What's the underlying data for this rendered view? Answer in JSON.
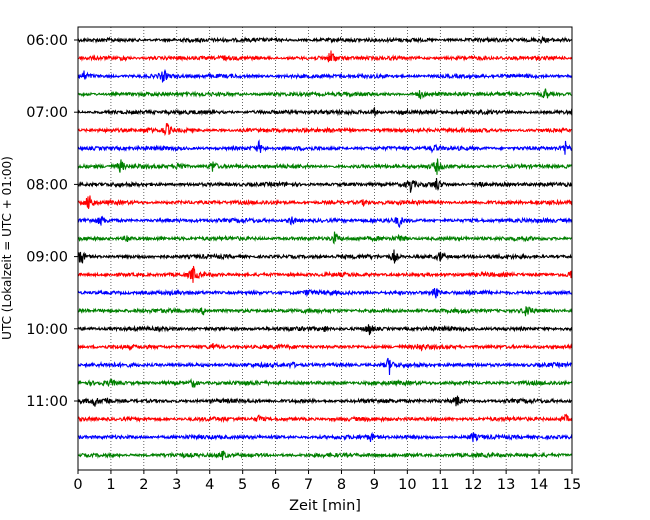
{
  "chart_data": {
    "type": "line",
    "title": "",
    "xlabel": "Zeit  [min]",
    "ylabel": "UTC (Lokalzeit = UTC + 01:00)",
    "xlim": [
      0,
      15
    ],
    "x_ticks": [
      0,
      1,
      2,
      3,
      4,
      5,
      6,
      7,
      8,
      9,
      10,
      11,
      12,
      13,
      14,
      15
    ],
    "x_tick_labels": [
      "0",
      "1",
      "2",
      "3",
      "4",
      "5",
      "6",
      "7",
      "8",
      "9",
      "10",
      "11",
      "12",
      "13",
      "14",
      "15"
    ],
    "y_tick_labels": [
      "06:00",
      "07:00",
      "08:00",
      "09:00",
      "10:00",
      "11:00"
    ],
    "grid": "vertical dotted",
    "trace_colors": [
      "#000000",
      "#ff0000",
      "#0000ff",
      "#008000"
    ],
    "traces": [
      {
        "start": "06:00",
        "events": [
          {
            "x": 14.1,
            "amp": 0.25
          }
        ]
      },
      {
        "start": "06:15",
        "events": [
          {
            "x": 7.7,
            "amp": 1.0
          },
          {
            "x": 1.4,
            "amp": 0.3
          },
          {
            "x": 4.4,
            "amp": 0.3
          }
        ]
      },
      {
        "start": "06:30",
        "events": [
          {
            "x": 0.2,
            "amp": 0.55
          },
          {
            "x": 2.6,
            "amp": 0.75
          }
        ]
      },
      {
        "start": "06:45",
        "events": [
          {
            "x": 10.4,
            "amp": 0.5
          },
          {
            "x": 14.2,
            "amp": 0.8
          }
        ]
      },
      {
        "start": "07:00",
        "events": [
          {
            "x": 9.0,
            "amp": 0.45
          },
          {
            "x": 9.9,
            "amp": 0.35
          }
        ]
      },
      {
        "start": "07:15",
        "events": [
          {
            "x": 2.7,
            "amp": 0.75
          },
          {
            "x": 2.1,
            "amp": 0.3
          }
        ]
      },
      {
        "start": "07:30",
        "events": [
          {
            "x": 5.5,
            "amp": 0.7
          },
          {
            "x": 10.8,
            "amp": 0.5
          },
          {
            "x": 14.8,
            "amp": 0.85
          }
        ]
      },
      {
        "start": "07:45",
        "events": [
          {
            "x": 1.3,
            "amp": 0.75
          },
          {
            "x": 3.1,
            "amp": 0.85
          },
          {
            "x": 4.1,
            "amp": 0.7
          },
          {
            "x": 10.9,
            "amp": 0.8
          }
        ]
      },
      {
        "start": "08:00",
        "events": [
          {
            "x": 10.1,
            "amp": 0.85
          },
          {
            "x": 10.9,
            "amp": 0.8
          },
          {
            "x": 12.2,
            "amp": 0.5
          }
        ]
      },
      {
        "start": "08:15",
        "events": [
          {
            "x": 0.35,
            "amp": 1.2
          },
          {
            "x": 8.7,
            "amp": 0.35
          }
        ]
      },
      {
        "start": "08:30",
        "events": [
          {
            "x": 0.7,
            "amp": 0.45
          },
          {
            "x": 6.5,
            "amp": 0.6
          },
          {
            "x": 9.75,
            "amp": 0.65
          }
        ]
      },
      {
        "start": "08:45",
        "events": [
          {
            "x": 1.5,
            "amp": 0.5
          },
          {
            "x": 7.8,
            "amp": 0.75
          },
          {
            "x": 9.8,
            "amp": 0.5
          }
        ]
      },
      {
        "start": "09:00",
        "events": [
          {
            "x": 0.1,
            "amp": 1.0
          },
          {
            "x": 9.6,
            "amp": 0.8
          },
          {
            "x": 11.0,
            "amp": 0.6
          }
        ]
      },
      {
        "start": "09:15",
        "events": [
          {
            "x": 3.5,
            "amp": 0.95
          },
          {
            "x": 15.0,
            "amp": 0.7
          }
        ]
      },
      {
        "start": "09:30",
        "events": [
          {
            "x": 10.85,
            "amp": 1.1
          },
          {
            "x": 7.0,
            "amp": 0.35
          }
        ]
      },
      {
        "start": "09:45",
        "events": [
          {
            "x": 13.65,
            "amp": 1.05
          },
          {
            "x": 3.8,
            "amp": 0.45
          }
        ]
      },
      {
        "start": "10:00",
        "events": [
          {
            "x": 8.85,
            "amp": 0.75
          },
          {
            "x": 7.5,
            "amp": 0.3
          }
        ]
      },
      {
        "start": "10:15",
        "events": [
          {
            "x": 4.1,
            "amp": 0.35
          },
          {
            "x": 10.4,
            "amp": 0.35
          }
        ]
      },
      {
        "start": "10:30",
        "events": [
          {
            "x": 9.45,
            "amp": 1.1
          },
          {
            "x": 6.5,
            "amp": 0.3
          }
        ]
      },
      {
        "start": "10:45",
        "events": [
          {
            "x": 3.5,
            "amp": 0.55
          },
          {
            "x": 1.0,
            "amp": 0.3
          }
        ]
      },
      {
        "start": "11:00",
        "events": [
          {
            "x": 0.5,
            "amp": 0.55
          },
          {
            "x": 0.85,
            "amp": 0.45
          },
          {
            "x": 11.5,
            "amp": 0.75
          }
        ]
      },
      {
        "start": "11:15",
        "events": [
          {
            "x": 5.5,
            "amp": 0.45
          },
          {
            "x": 14.8,
            "amp": 0.45
          }
        ]
      },
      {
        "start": "11:30",
        "events": [
          {
            "x": 8.9,
            "amp": 0.5
          },
          {
            "x": 12.0,
            "amp": 0.5
          }
        ]
      },
      {
        "start": "11:45",
        "events": [
          {
            "x": 4.4,
            "amp": 0.5
          }
        ]
      }
    ]
  }
}
